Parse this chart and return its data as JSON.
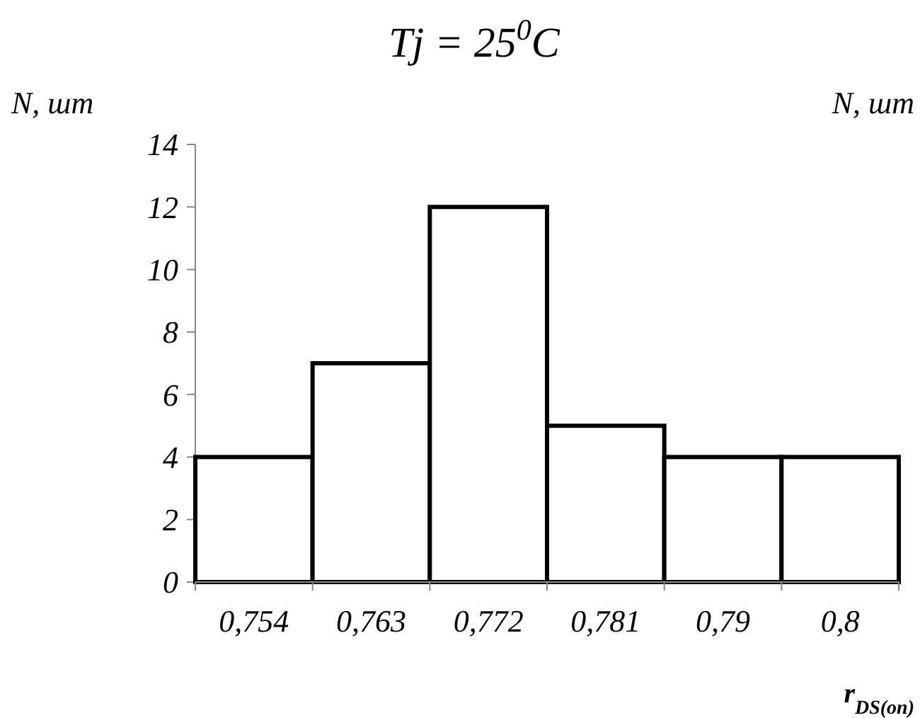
{
  "chart_data": {
    "type": "bar",
    "title": "Tj = 25$^{0}$C",
    "ylabel": "N, шт",
    "xlabel": "r$_{DS(on)}$",
    "annotations": [
      "N, шт"
    ],
    "categories": [
      "0,754",
      "0,763",
      "0,772",
      "0,781",
      "0,79",
      "0,8"
    ],
    "values": [
      4,
      7,
      12,
      5,
      4,
      4
    ],
    "color": "#ffffff",
    "ylim": [
      0,
      14
    ],
    "yticks": [
      0,
      2,
      4,
      6,
      8,
      10,
      12,
      14
    ],
    "grid": false
  }
}
